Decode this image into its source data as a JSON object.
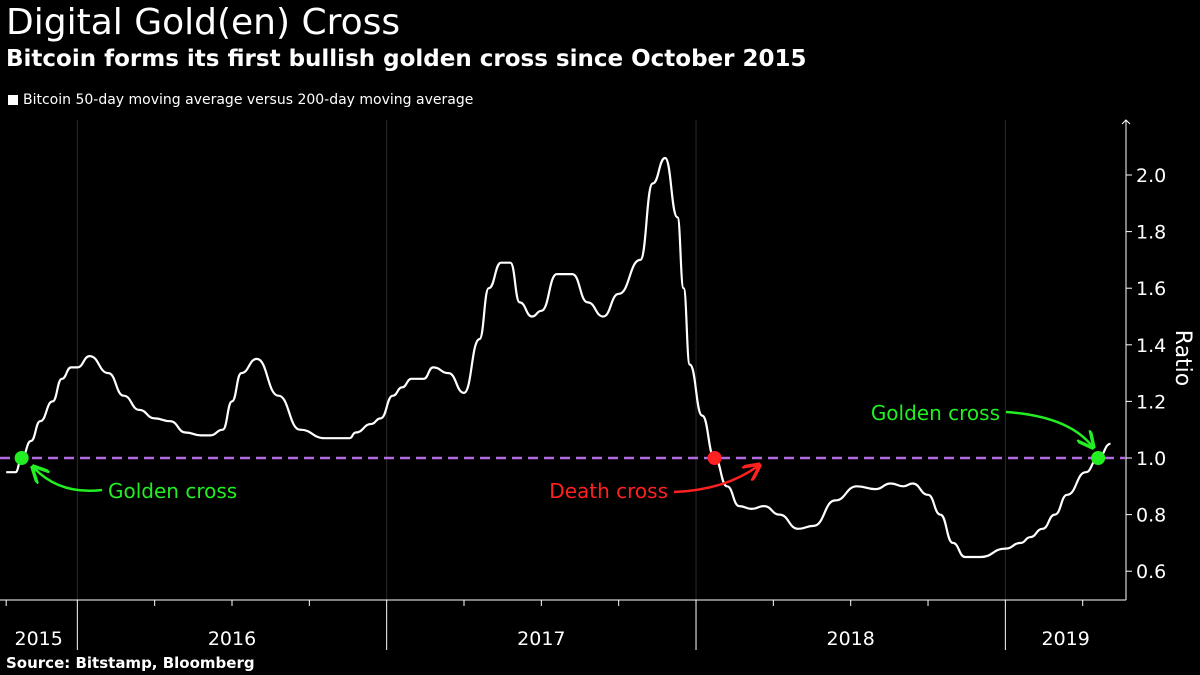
{
  "title": "Digital Gold(en) Cross",
  "subtitle": "Bitcoin forms its first bullish golden cross since October 2015",
  "legend_label": "Bitcoin 50-day moving average versus 200-day moving average",
  "source": "Source: Bitstamp, Bloomberg",
  "colors": {
    "background": "#000000",
    "line": "#ffffff",
    "reference_line": "#b36be0",
    "golden_cross": "#22ee22",
    "death_cross": "#ff2020"
  },
  "chart_data": {
    "type": "line",
    "ylabel": "Ratio",
    "ylim": [
      0.5,
      2.2
    ],
    "y_ticks": [
      0.6,
      0.8,
      1.0,
      1.2,
      1.4,
      1.6,
      1.8,
      2.0
    ],
    "y_tick_labels": [
      "0.6",
      "0.8",
      "1.0",
      "1.2",
      "1.4",
      "1.6",
      "1.8",
      "2.0"
    ],
    "x_year_labels": [
      "2015",
      "2016",
      "2017",
      "2018",
      "2019"
    ],
    "reference_line": 1.0,
    "series": [
      {
        "name": "Bitcoin 50-day moving average versus 200-day moving average",
        "x": [
          2015.77,
          2015.8,
          2015.82,
          2015.85,
          2015.88,
          2015.92,
          2015.95,
          2015.98,
          2016.0,
          2016.04,
          2016.1,
          2016.15,
          2016.2,
          2016.25,
          2016.3,
          2016.35,
          2016.4,
          2016.43,
          2016.47,
          2016.5,
          2016.53,
          2016.58,
          2016.65,
          2016.72,
          2016.8,
          2016.88,
          2016.9,
          2016.95,
          2016.98,
          2017.02,
          2017.05,
          2017.08,
          2017.12,
          2017.15,
          2017.2,
          2017.25,
          2017.3,
          2017.33,
          2017.37,
          2017.4,
          2017.43,
          2017.47,
          2017.5,
          2017.55,
          2017.6,
          2017.65,
          2017.7,
          2017.75,
          2017.82,
          2017.86,
          2017.9,
          2017.94,
          2017.96,
          2017.98,
          2018.02,
          2018.06,
          2018.1,
          2018.14,
          2018.18,
          2018.22,
          2018.27,
          2018.33,
          2018.38,
          2018.45,
          2018.52,
          2018.58,
          2018.63,
          2018.67,
          2018.7,
          2018.75,
          2018.79,
          2018.83,
          2018.87,
          2018.92,
          2019.0,
          2019.05,
          2019.08,
          2019.12,
          2019.16,
          2019.2,
          2019.26,
          2019.3,
          2019.34
        ],
        "y": [
          0.95,
          0.95,
          1.0,
          1.06,
          1.13,
          1.2,
          1.28,
          1.32,
          1.32,
          1.36,
          1.3,
          1.22,
          1.17,
          1.14,
          1.13,
          1.09,
          1.08,
          1.08,
          1.1,
          1.2,
          1.3,
          1.35,
          1.22,
          1.1,
          1.07,
          1.07,
          1.09,
          1.12,
          1.14,
          1.22,
          1.25,
          1.28,
          1.28,
          1.32,
          1.3,
          1.23,
          1.42,
          1.6,
          1.69,
          1.69,
          1.55,
          1.5,
          1.52,
          1.65,
          1.65,
          1.55,
          1.5,
          1.58,
          1.7,
          1.97,
          2.06,
          1.85,
          1.6,
          1.33,
          1.15,
          1.0,
          0.9,
          0.83,
          0.82,
          0.83,
          0.8,
          0.75,
          0.76,
          0.85,
          0.9,
          0.89,
          0.91,
          0.9,
          0.91,
          0.87,
          0.8,
          0.7,
          0.65,
          0.65,
          0.68,
          0.7,
          0.72,
          0.75,
          0.8,
          0.87,
          0.95,
          1.0,
          1.05
        ]
      }
    ],
    "annotations": [
      {
        "label": "Golden cross",
        "x": 2015.82,
        "y": 1.0,
        "kind": "golden"
      },
      {
        "label": "Death cross",
        "x": 2018.06,
        "y": 1.0,
        "kind": "death"
      },
      {
        "label": "Golden cross",
        "x": 2019.3,
        "y": 1.0,
        "kind": "golden"
      }
    ]
  }
}
